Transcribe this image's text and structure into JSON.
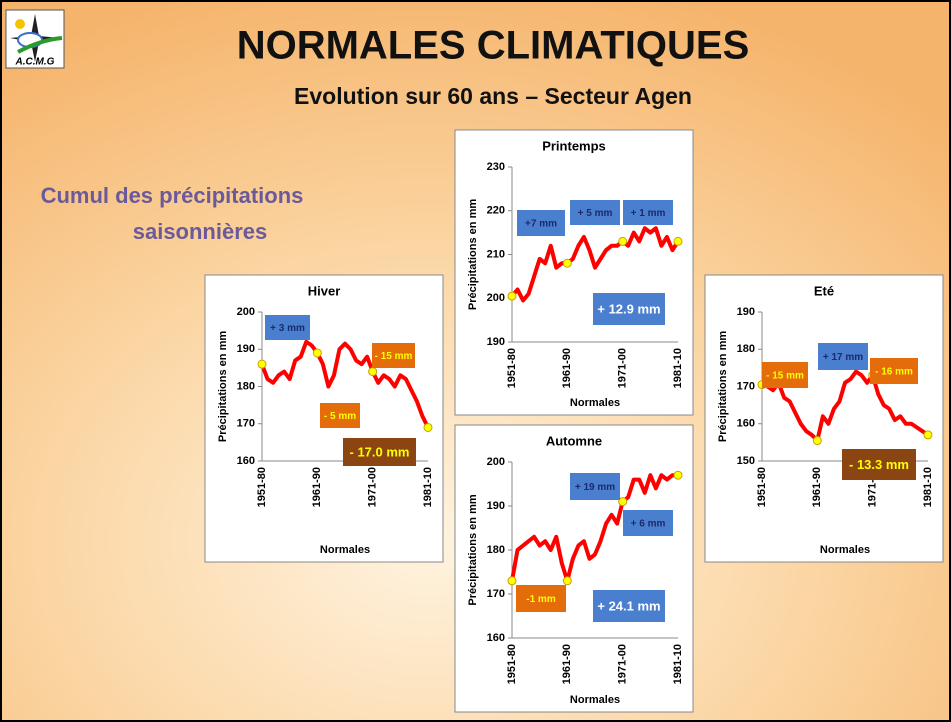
{
  "title": "NORMALES CLIMATIQUES",
  "subtitle": "Evolution sur 60 ans – Secteur Agen",
  "heading": [
    "Cumul des précipitations",
    "saisonnières"
  ],
  "logo_text": "A.C.M.G",
  "chart_data": [
    {
      "type": "line",
      "title": "Hiver",
      "ylabel": "Précipitations en mm",
      "xlabel": "Normales",
      "color": "#ff0000",
      "categories": [
        "1951-80",
        null,
        null,
        null,
        null,
        null,
        null,
        null,
        null,
        null,
        "1961-90",
        null,
        null,
        null,
        null,
        null,
        null,
        null,
        null,
        null,
        "1971-00",
        null,
        null,
        null,
        null,
        null,
        null,
        null,
        null,
        null,
        "1981-10"
      ],
      "values": [
        186,
        182,
        181,
        183,
        184,
        182,
        187,
        188,
        192,
        191,
        189,
        186,
        180,
        183,
        190,
        191.5,
        190,
        187,
        186,
        188,
        184,
        181,
        183,
        182,
        180,
        183,
        182,
        179,
        176,
        172,
        169
      ],
      "ylim": [
        160,
        200
      ],
      "yticks": [
        160,
        170,
        180,
        190,
        200
      ],
      "annotations": [
        {
          "text": "+ 3 mm",
          "color": "#4a7fcf"
        },
        {
          "text": "- 15 mm",
          "color": "#e46c0a"
        },
        {
          "text": "- 5 mm",
          "color": "#e46c0a"
        },
        {
          "text": "- 17.0 mm",
          "color": "#8b4513"
        }
      ]
    },
    {
      "type": "line",
      "title": "Printemps",
      "ylabel": "Précipitations en mm",
      "xlabel": "Normales",
      "color": "#ff0000",
      "categories": [
        "1951-80",
        null,
        null,
        null,
        null,
        null,
        null,
        null,
        null,
        null,
        "1961-90",
        null,
        null,
        null,
        null,
        null,
        null,
        null,
        null,
        null,
        "1971-00",
        null,
        null,
        null,
        null,
        null,
        null,
        null,
        null,
        null,
        "1981-10"
      ],
      "values": [
        200.5,
        202,
        199.5,
        201,
        205,
        209,
        208,
        212,
        207,
        208,
        208,
        209,
        212,
        214,
        211,
        207,
        209,
        211,
        212,
        212,
        213,
        212,
        215,
        213,
        216,
        215,
        216,
        212,
        214,
        211,
        213
      ],
      "ylim": [
        190,
        230
      ],
      "yticks": [
        190,
        200,
        210,
        220,
        230
      ],
      "annotations": [
        {
          "text": "+7 mm",
          "color": "#4a7fcf"
        },
        {
          "text": "+ 5 mm",
          "color": "#4a7fcf"
        },
        {
          "text": "+ 1 mm",
          "color": "#4a7fcf"
        },
        {
          "text": "+ 12.9 mm",
          "color": "#4a7fcf"
        }
      ]
    },
    {
      "type": "line",
      "title": "Automne",
      "ylabel": "Précipitations en mm",
      "xlabel": "Normales",
      "color": "#ff0000",
      "categories": [
        "1951-80",
        null,
        null,
        null,
        null,
        null,
        null,
        null,
        null,
        null,
        "1961-90",
        null,
        null,
        null,
        null,
        null,
        null,
        null,
        null,
        null,
        "1971-00",
        null,
        null,
        null,
        null,
        null,
        null,
        null,
        null,
        null,
        "1981-10"
      ],
      "values": [
        173,
        180,
        181,
        182,
        183,
        181,
        182,
        180,
        183,
        177,
        173,
        178,
        181,
        182,
        178,
        179,
        182,
        186,
        188,
        186,
        191,
        192,
        196,
        196,
        193,
        197,
        194,
        197,
        196,
        197,
        197
      ],
      "ylim": [
        160,
        200
      ],
      "yticks": [
        160,
        170,
        180,
        190,
        200
      ],
      "annotations": [
        {
          "text": "+ 19 mm",
          "color": "#4a7fcf"
        },
        {
          "text": "+ 6 mm",
          "color": "#4a7fcf"
        },
        {
          "text": "-1 mm",
          "color": "#e46c0a"
        },
        {
          "text": "+ 24.1 mm",
          "color": "#4a7fcf"
        }
      ]
    },
    {
      "type": "line",
      "title": "Eté",
      "ylabel": "Précipitations en mm",
      "xlabel": "Normales",
      "color": "#ff0000",
      "categories": [
        "1951-80",
        null,
        null,
        null,
        null,
        null,
        null,
        null,
        null,
        null,
        "1961-90",
        null,
        null,
        null,
        null,
        null,
        null,
        null,
        null,
        null,
        "1971-00",
        null,
        null,
        null,
        null,
        null,
        null,
        null,
        null,
        null,
        "1981-10"
      ],
      "values": [
        170.5,
        170,
        169,
        171,
        167,
        166,
        163,
        160,
        158,
        157,
        155.5,
        162,
        160,
        164,
        166,
        171,
        172,
        174,
        173,
        171,
        173,
        168,
        165,
        164,
        161,
        162,
        160,
        160,
        159,
        158,
        157
      ],
      "ylim": [
        150,
        190
      ],
      "yticks": [
        150,
        160,
        170,
        180,
        190
      ],
      "annotations": [
        {
          "text": "- 15 mm",
          "color": "#e46c0a"
        },
        {
          "text": "+ 17 mm",
          "color": "#4a7fcf"
        },
        {
          "text": "- 16 mm",
          "color": "#e46c0a"
        },
        {
          "text": "- 13.3 mm",
          "color": "#8b4513"
        }
      ]
    }
  ]
}
